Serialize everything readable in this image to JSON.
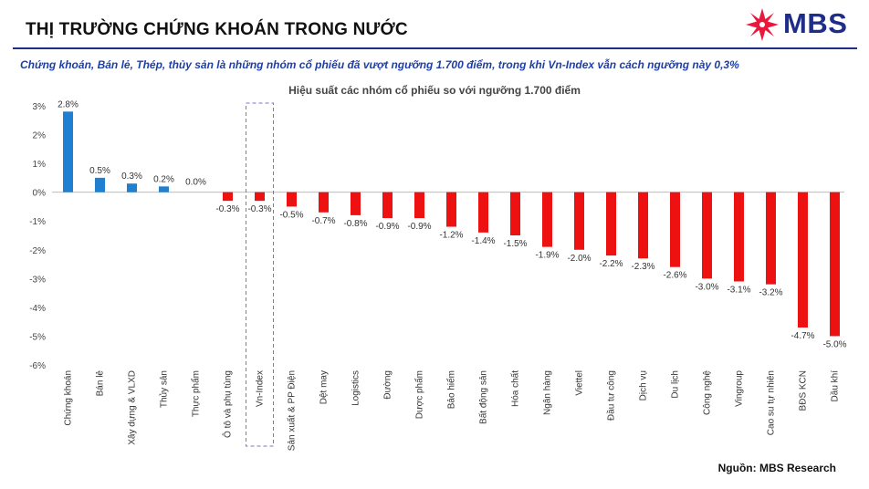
{
  "header": {
    "title": "THỊ TRƯỜNG CHỨNG KHOÁN TRONG NƯỚC",
    "logo_text": "MBS"
  },
  "subtitle": "Chứng khoán, Bán lẻ, Thép, thủy sản là những nhóm cổ phiếu đã vượt ngưỡng 1.700 điểm, trong khi Vn-Index vẫn cách ngưỡng này 0,3%",
  "source": "Nguồn: MBS Research",
  "colors": {
    "brand_navy": "#1f2d8a",
    "brand_red": "#e8193c",
    "positive_bar": "#1f7fd0",
    "negative_bar": "#ee1111",
    "highlight_box": "#8a6fc9"
  },
  "chart_data": {
    "type": "bar",
    "title": "Hiệu suất các nhóm cổ phiếu so với ngưỡng 1.700 điểm",
    "xlabel": "",
    "ylabel": "",
    "ylim": [
      -6,
      3
    ],
    "yticks": [
      "3%",
      "2%",
      "1%",
      "0%",
      "-1%",
      "-2%",
      "-3%",
      "-4%",
      "-5%",
      "-6%"
    ],
    "categories": [
      "Chứng khoán",
      "Bán lẻ",
      "Xây dựng & VLXD",
      "Thủy sản",
      "Thực phẩm",
      "Ô tô và phụ tùng",
      "Vn-Index",
      "Sản xuất & PP Điện",
      "Dệt may",
      "Logistics",
      "Đường",
      "Dược phẩm",
      "Bảo hiểm",
      "Bất động sản",
      "Hóa chất",
      "Ngân hàng",
      "Viettel",
      "Đầu tư công",
      "Dịch vụ",
      "Du lịch",
      "Công nghệ",
      "Vingroup",
      "Cao su tự nhiên",
      "BĐS KCN",
      "Dầu khí"
    ],
    "values": [
      2.8,
      0.5,
      0.3,
      0.2,
      0.0,
      -0.3,
      -0.3,
      -0.5,
      -0.7,
      -0.8,
      -0.9,
      -0.9,
      -1.2,
      -1.4,
      -1.5,
      -1.9,
      -2.0,
      -2.2,
      -2.3,
      -2.6,
      -3.0,
      -3.1,
      -3.2,
      -4.7,
      -5.0
    ],
    "data_labels": [
      "2.8%",
      "0.5%",
      "0.3%",
      "0.2%",
      "0.0%",
      "-0.3%",
      "-0.3%",
      "-0.5%",
      "-0.7%",
      "-0.8%",
      "-0.9%",
      "-0.9%",
      "-1.2%",
      "-1.4%",
      "-1.5%",
      "-1.9%",
      "-2.0%",
      "-2.2%",
      "-2.3%",
      "-2.6%",
      "-3.0%",
      "-3.1%",
      "-3.2%",
      "-4.7%",
      "-5.0%"
    ],
    "highlighted_category": "Vn-Index",
    "grid": false,
    "legend": "none"
  }
}
